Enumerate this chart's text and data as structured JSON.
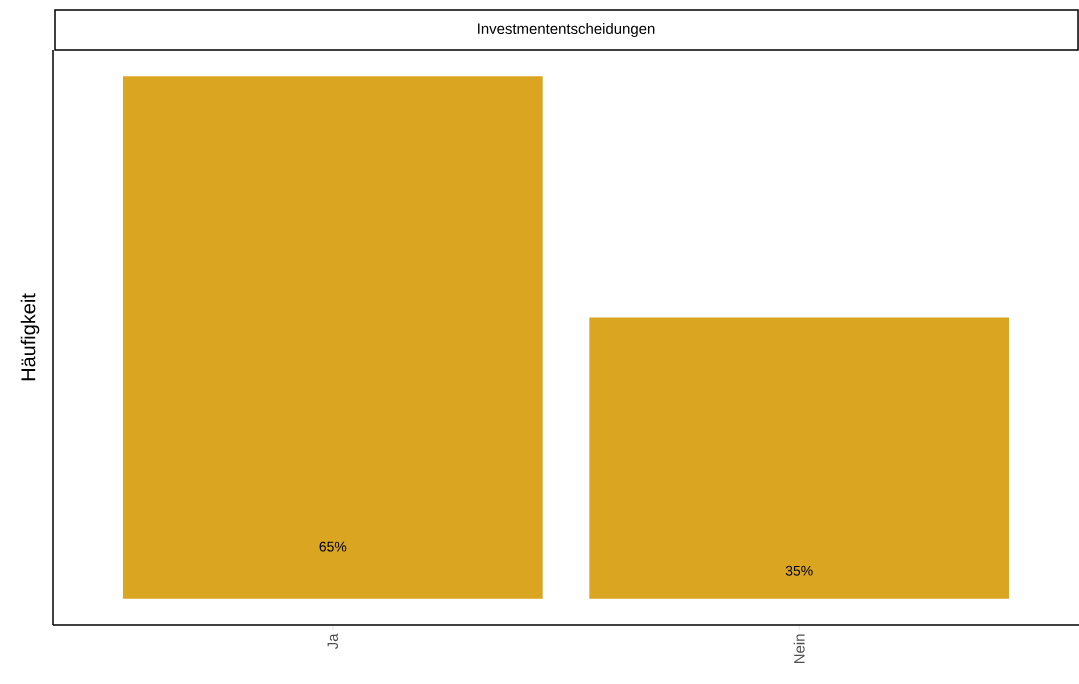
{
  "chart_data": {
    "type": "bar",
    "title": "Investmententscheidungen",
    "ylabel": "Häufigkeit",
    "categories": [
      "Ja",
      "Nein"
    ],
    "values": [
      65,
      35
    ],
    "color": "#daa520",
    "value_labels": [
      "65%",
      "35%"
    ]
  }
}
